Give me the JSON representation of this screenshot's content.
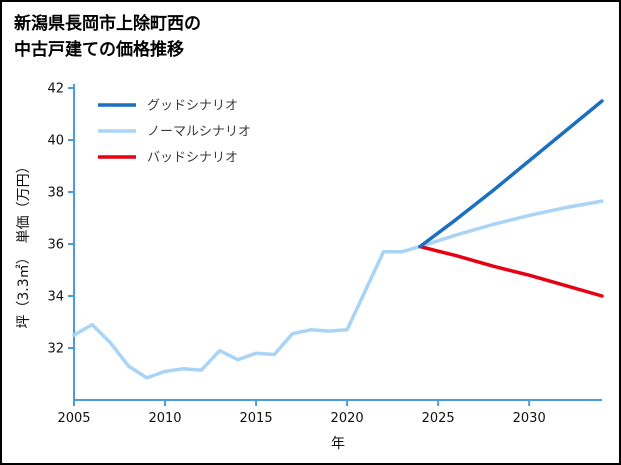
{
  "title": {
    "line1": "新潟県長岡市上除町西の",
    "line2": "中古戸建ての価格推移"
  },
  "chart_data": {
    "type": "line",
    "title": "新潟県長岡市上除町西の中古戸建ての価格推移",
    "xlabel": "年",
    "ylabel": "坪（3.3㎡）　単価（万円）",
    "xlim": [
      2005,
      2034
    ],
    "ylim": [
      30,
      42
    ],
    "xticks": [
      2005,
      2010,
      2015,
      2020,
      2025,
      2030
    ],
    "yticks": [
      32,
      34,
      36,
      38,
      40,
      42
    ],
    "grid": false,
    "legend_position": "upper-left",
    "axis_color": "#4a9ade",
    "series": [
      {
        "id": "good",
        "name": "グッドシナリオ",
        "color": "#1b6fbf",
        "width": 3.5,
        "x": [
          2024,
          2026,
          2028,
          2030,
          2032,
          2034
        ],
        "y": [
          35.9,
          36.95,
          38.05,
          39.2,
          40.35,
          41.5
        ]
      },
      {
        "id": "normal",
        "name": "ノーマルシナリオ",
        "color": "#a9d4f5",
        "width": 3.5,
        "x": [
          2005,
          2006,
          2007,
          2008,
          2009,
          2010,
          2011,
          2012,
          2013,
          2014,
          2015,
          2016,
          2017,
          2018,
          2019,
          2020,
          2021,
          2022,
          2023,
          2024,
          2026,
          2028,
          2030,
          2032,
          2034
        ],
        "y": [
          32.5,
          32.9,
          32.2,
          31.3,
          30.85,
          31.1,
          31.2,
          31.15,
          31.9,
          31.55,
          31.8,
          31.75,
          32.55,
          32.7,
          32.65,
          32.7,
          34.2,
          35.7,
          35.7,
          35.9,
          36.35,
          36.75,
          37.1,
          37.4,
          37.65
        ]
      },
      {
        "id": "bad",
        "name": "バッドシナリオ",
        "color": "#e60012",
        "width": 3.5,
        "x": [
          2024,
          2026,
          2028,
          2030,
          2032,
          2034
        ],
        "y": [
          35.9,
          35.55,
          35.15,
          34.8,
          34.4,
          34.0
        ]
      }
    ]
  }
}
